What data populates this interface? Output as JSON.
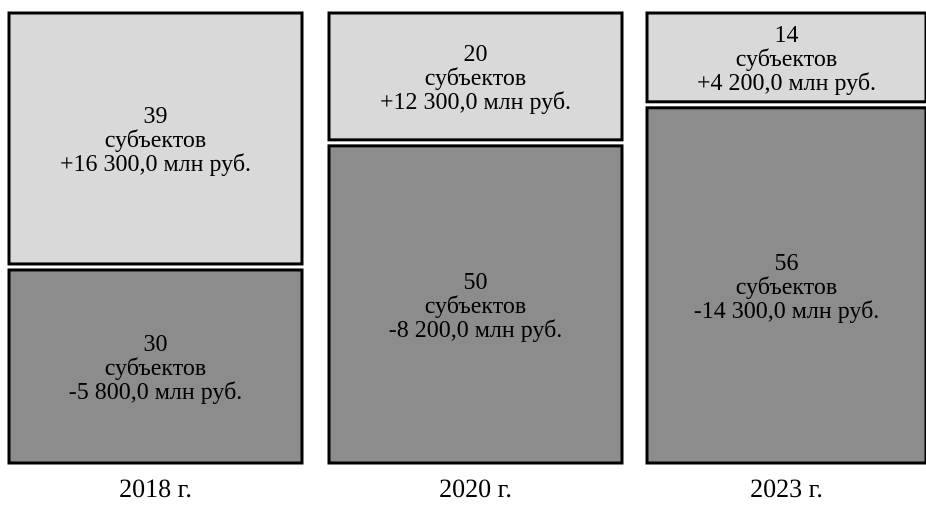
{
  "chart_data": {
    "type": "bar",
    "categories": [
      "2018 г.",
      "2020 г.",
      "2023 г."
    ],
    "series": [
      {
        "counts": [
          39,
          20,
          14
        ],
        "unit_label": "субъектов",
        "amounts": [
          "+16 300,0 млн руб.",
          "+12 300,0 млн руб.",
          "+4 200,0 млн руб."
        ],
        "color": "#d9d9d9"
      },
      {
        "counts": [
          30,
          50,
          56
        ],
        "unit_label": "субъектов",
        "amounts": [
          "-5 800,0 млн руб.",
          "-8 200,0 млн руб.",
          "-14 300,0 млн руб."
        ],
        "color": "#8c8c8c"
      }
    ],
    "title": "",
    "xlabel": "",
    "ylabel": "",
    "legend": "none",
    "grid": false
  }
}
